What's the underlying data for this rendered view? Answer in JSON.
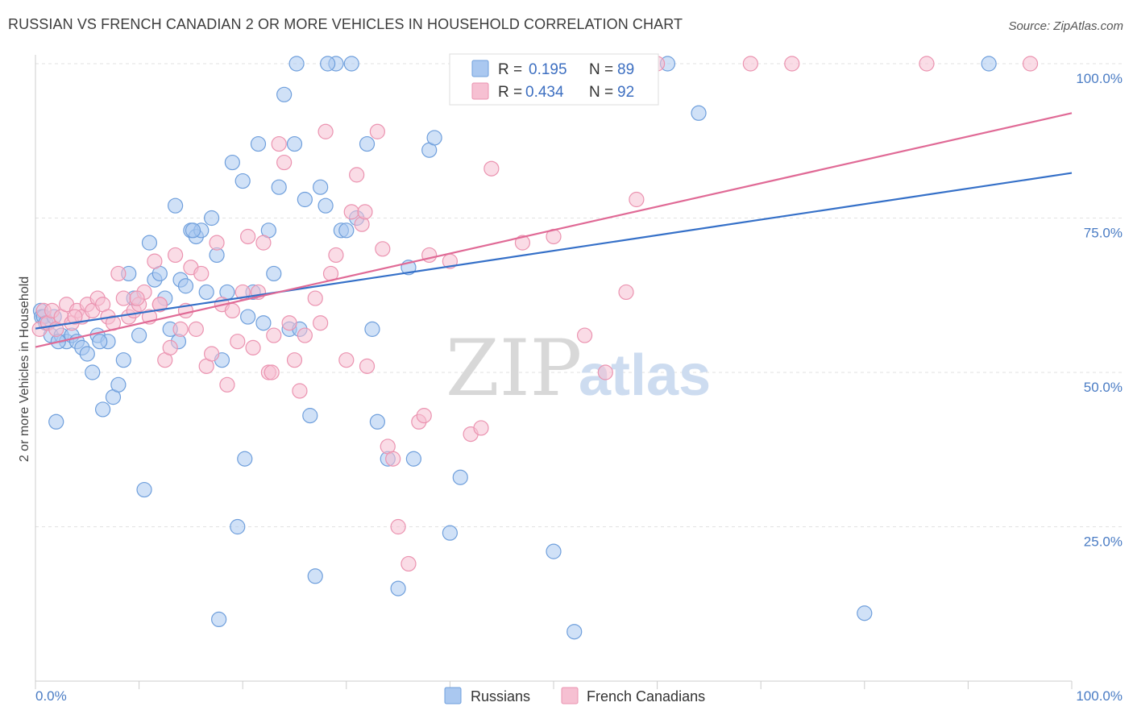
{
  "header": {
    "title": "RUSSIAN VS FRENCH CANADIAN 2 OR MORE VEHICLES IN HOUSEHOLD CORRELATION CHART",
    "source": "Source: ZipAtlas.com"
  },
  "watermark": {
    "part1": "ZIP",
    "part2": "atlas"
  },
  "colors": {
    "russians_fill": "#aac8f0",
    "russians_stroke": "#6f9fdc",
    "russians_line": "#3570c8",
    "french_fill": "#f6c0d2",
    "french_stroke": "#eb93b0",
    "french_line": "#e06a96",
    "tick_text": "#4a7cc4",
    "grid": "#e2e2e2"
  },
  "legend": {
    "russians": {
      "r_label": "R =",
      "r_value": "0.195",
      "n_label": "N =",
      "n_value": "89"
    },
    "french": {
      "r_label": "R =",
      "r_value": "0.434",
      "n_label": "N =",
      "n_value": "92"
    }
  },
  "bottom_legend": [
    "Russians",
    "French Canadians"
  ],
  "chart_data": {
    "type": "scatter",
    "title": "RUSSIAN VS FRENCH CANADIAN 2 OR MORE VEHICLES IN HOUSEHOLD CORRELATION CHART",
    "xlabel": "",
    "ylabel": "2 or more Vehicles in Household",
    "xlim": [
      0,
      100
    ],
    "ylim": [
      0,
      100
    ],
    "x_tick_labels": [
      "0.0%",
      "100.0%"
    ],
    "y_tick_labels": [
      "25.0%",
      "50.0%",
      "75.0%",
      "100.0%"
    ],
    "y_ticks": [
      25,
      50,
      75,
      100
    ],
    "grid": true,
    "legend_position": "top-center",
    "series": [
      {
        "name": "Russians",
        "r": 0.195,
        "n": 89,
        "trend": {
          "x": [
            0,
            100
          ],
          "y": [
            57.1,
            82.3
          ]
        },
        "points": [
          [
            0.5,
            60
          ],
          [
            0.6,
            59
          ],
          [
            0.8,
            59
          ],
          [
            1.0,
            58
          ],
          [
            1.5,
            56
          ],
          [
            2,
            42
          ],
          [
            2.5,
            56
          ],
          [
            3,
            55
          ],
          [
            3.5,
            56
          ],
          [
            4,
            55
          ],
          [
            4.5,
            54
          ],
          [
            5,
            53
          ],
          [
            5.5,
            50
          ],
          [
            6,
            56
          ],
          [
            6.5,
            44
          ],
          [
            7,
            55
          ],
          [
            7.5,
            46
          ],
          [
            8,
            48
          ],
          [
            8.5,
            52
          ],
          [
            9,
            66
          ],
          [
            9.5,
            62
          ],
          [
            10,
            56
          ],
          [
            10.5,
            31
          ],
          [
            11,
            71
          ],
          [
            11.5,
            65
          ],
          [
            12,
            66
          ],
          [
            12.5,
            62
          ],
          [
            13,
            57
          ],
          [
            13.5,
            77
          ],
          [
            13.8,
            55
          ],
          [
            14,
            65
          ],
          [
            14.5,
            64
          ],
          [
            15,
            73
          ],
          [
            15.5,
            72
          ],
          [
            16,
            73
          ],
          [
            16.5,
            63
          ],
          [
            17,
            75
          ],
          [
            17.5,
            69
          ],
          [
            17.7,
            10
          ],
          [
            18,
            52
          ],
          [
            18.5,
            63
          ],
          [
            19,
            84
          ],
          [
            19.5,
            25
          ],
          [
            20,
            81
          ],
          [
            20.2,
            36
          ],
          [
            20.5,
            59
          ],
          [
            21,
            63
          ],
          [
            21.5,
            87
          ],
          [
            22,
            58
          ],
          [
            22.5,
            73
          ],
          [
            23,
            66
          ],
          [
            23.5,
            80
          ],
          [
            24,
            95
          ],
          [
            24.5,
            57
          ],
          [
            25,
            87
          ],
          [
            25.5,
            57
          ],
          [
            26,
            78
          ],
          [
            26.5,
            43
          ],
          [
            27,
            17
          ],
          [
            27.5,
            80
          ],
          [
            28,
            77
          ],
          [
            29,
            100
          ],
          [
            29.5,
            73
          ],
          [
            30,
            73
          ],
          [
            30.5,
            100
          ],
          [
            31,
            75
          ],
          [
            32,
            87
          ],
          [
            32.5,
            57
          ],
          [
            33,
            42
          ],
          [
            34,
            36
          ],
          [
            35,
            15
          ],
          [
            36,
            67
          ],
          [
            36.5,
            36
          ],
          [
            38,
            86
          ],
          [
            38.5,
            88
          ],
          [
            40,
            24
          ],
          [
            41,
            33
          ],
          [
            50,
            21
          ],
          [
            52,
            8
          ],
          [
            61,
            100
          ],
          [
            64,
            92
          ],
          [
            80,
            11
          ],
          [
            92,
            100
          ],
          [
            2.2,
            55
          ],
          [
            6.2,
            55
          ],
          [
            15.2,
            73
          ],
          [
            25.2,
            100
          ],
          [
            28.2,
            100
          ],
          [
            1.8,
            59
          ]
        ]
      },
      {
        "name": "French Canadians",
        "r": 0.434,
        "n": 92,
        "trend": {
          "x": [
            0,
            100
          ],
          "y": [
            54.1,
            92.0
          ]
        },
        "points": [
          [
            0.4,
            57
          ],
          [
            0.8,
            60
          ],
          [
            1.2,
            58
          ],
          [
            1.6,
            60
          ],
          [
            2,
            57
          ],
          [
            2.5,
            59
          ],
          [
            3,
            61
          ],
          [
            3.5,
            58
          ],
          [
            4,
            60
          ],
          [
            4.5,
            59
          ],
          [
            5,
            61
          ],
          [
            5.5,
            60
          ],
          [
            6,
            62
          ],
          [
            6.5,
            61
          ],
          [
            7,
            59
          ],
          [
            7.5,
            58
          ],
          [
            8,
            66
          ],
          [
            8.5,
            62
          ],
          [
            9,
            59
          ],
          [
            9.5,
            60
          ],
          [
            10,
            61
          ],
          [
            10.5,
            63
          ],
          [
            11,
            59
          ],
          [
            11.5,
            68
          ],
          [
            12,
            61
          ],
          [
            12.5,
            52
          ],
          [
            13,
            54
          ],
          [
            13.5,
            69
          ],
          [
            14,
            57
          ],
          [
            14.5,
            60
          ],
          [
            15,
            67
          ],
          [
            15.5,
            57
          ],
          [
            16,
            66
          ],
          [
            16.5,
            51
          ],
          [
            17,
            53
          ],
          [
            17.5,
            71
          ],
          [
            18,
            61
          ],
          [
            18.5,
            48
          ],
          [
            19,
            60
          ],
          [
            19.5,
            55
          ],
          [
            20,
            63
          ],
          [
            20.5,
            72
          ],
          [
            21,
            54
          ],
          [
            21.5,
            63
          ],
          [
            22,
            71
          ],
          [
            22.5,
            50
          ],
          [
            23,
            56
          ],
          [
            23.5,
            87
          ],
          [
            24,
            84
          ],
          [
            24.5,
            58
          ],
          [
            25,
            52
          ],
          [
            25.5,
            47
          ],
          [
            26,
            56
          ],
          [
            27,
            62
          ],
          [
            27.5,
            58
          ],
          [
            28,
            89
          ],
          [
            28.5,
            66
          ],
          [
            29,
            69
          ],
          [
            30,
            52
          ],
          [
            30.5,
            76
          ],
          [
            31,
            82
          ],
          [
            31.5,
            74
          ],
          [
            32,
            51
          ],
          [
            33,
            89
          ],
          [
            33.5,
            70
          ],
          [
            34,
            38
          ],
          [
            34.5,
            36
          ],
          [
            35,
            25
          ],
          [
            36,
            19
          ],
          [
            37,
            42
          ],
          [
            37.5,
            43
          ],
          [
            38,
            69
          ],
          [
            40,
            68
          ],
          [
            42,
            40
          ],
          [
            44,
            83
          ],
          [
            47,
            71
          ],
          [
            50,
            72
          ],
          [
            53,
            56
          ],
          [
            55,
            50
          ],
          [
            57,
            63
          ],
          [
            58,
            78
          ],
          [
            60,
            100
          ],
          [
            69,
            100
          ],
          [
            73,
            100
          ],
          [
            86,
            100
          ],
          [
            96,
            100
          ],
          [
            12,
            61
          ],
          [
            22.8,
            50
          ],
          [
            31.8,
            76
          ],
          [
            43,
            41
          ],
          [
            3.8,
            59
          ],
          [
            9.8,
            62
          ]
        ]
      }
    ]
  }
}
